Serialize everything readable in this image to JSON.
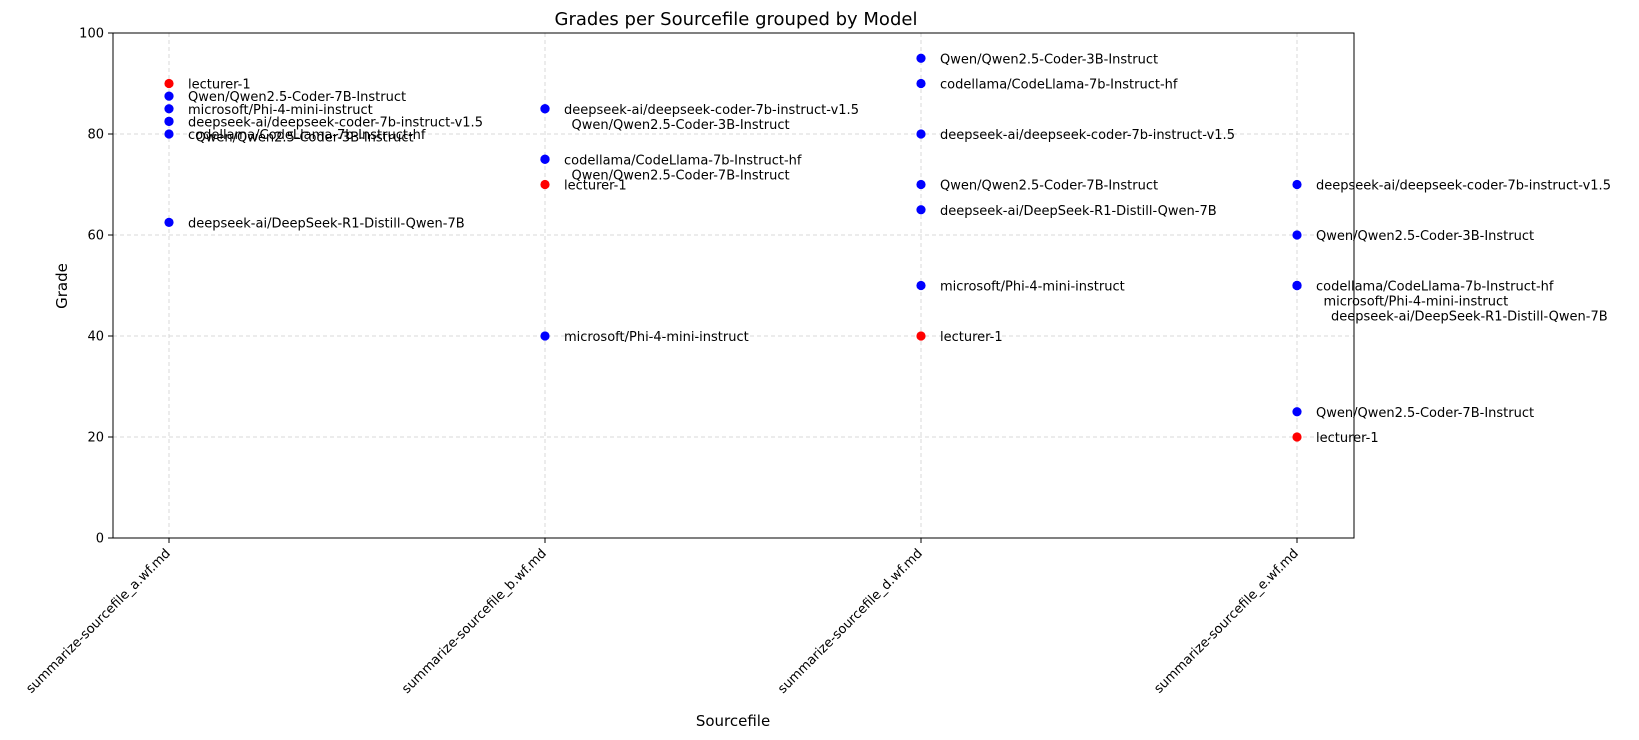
{
  "chart_data": {
    "type": "scatter",
    "title": "Grades per Sourcefile grouped by Model",
    "xlabel": "Sourcefile",
    "ylabel": "Grade",
    "ylim": [
      0,
      100
    ],
    "yticks": [
      "0",
      "20",
      "40",
      "60",
      "80",
      "100"
    ],
    "categories": [
      "summarize-sourcefile_a.wf.md",
      "summarize-sourcefile_b.wf.md",
      "summarize-sourcefile_d.wf.md",
      "summarize-sourcefile_e.wf.md"
    ],
    "grid": true,
    "colors": {
      "lecturer": "#ff0000",
      "model": "#0000ff"
    },
    "points": [
      {
        "category": "summarize-sourcefile_a.wf.md",
        "y": 90,
        "label": "lecturer-1",
        "kind": "lecturer"
      },
      {
        "category": "summarize-sourcefile_a.wf.md",
        "y": 87.5,
        "label": "Qwen/Qwen2.5-Coder-7B-Instruct",
        "kind": "model"
      },
      {
        "category": "summarize-sourcefile_a.wf.md",
        "y": 85,
        "label": "microsoft/Phi-4-mini-instruct",
        "kind": "model"
      },
      {
        "category": "summarize-sourcefile_a.wf.md",
        "y": 82.5,
        "label": "deepseek-ai/deepseek-coder-7b-instruct-v1.5",
        "kind": "model"
      },
      {
        "category": "summarize-sourcefile_a.wf.md",
        "y": 82.5,
        "label": "Qwen/Qwen2.5-Coder-3B-Instruct",
        "kind": "model"
      },
      {
        "category": "summarize-sourcefile_a.wf.md",
        "y": 80,
        "label": "codellama/CodeLlama-7b-Instruct-hf",
        "kind": "model"
      },
      {
        "category": "summarize-sourcefile_a.wf.md",
        "y": 62.5,
        "label": "deepseek-ai/DeepSeek-R1-Distill-Qwen-7B",
        "kind": "model"
      },
      {
        "category": "summarize-sourcefile_b.wf.md",
        "y": 85,
        "label": "deepseek-ai/deepseek-coder-7b-instruct-v1.5",
        "kind": "model"
      },
      {
        "category": "summarize-sourcefile_b.wf.md",
        "y": 85,
        "label": "Qwen/Qwen2.5-Coder-3B-Instruct",
        "kind": "model"
      },
      {
        "category": "summarize-sourcefile_b.wf.md",
        "y": 75,
        "label": "codellama/CodeLlama-7b-Instruct-hf",
        "kind": "model"
      },
      {
        "category": "summarize-sourcefile_b.wf.md",
        "y": 75,
        "label": "Qwen/Qwen2.5-Coder-7B-Instruct",
        "kind": "model"
      },
      {
        "category": "summarize-sourcefile_b.wf.md",
        "y": 70,
        "label": "lecturer-1",
        "kind": "lecturer"
      },
      {
        "category": "summarize-sourcefile_b.wf.md",
        "y": 40,
        "label": "microsoft/Phi-4-mini-instruct",
        "kind": "model"
      },
      {
        "category": "summarize-sourcefile_d.wf.md",
        "y": 95,
        "label": "Qwen/Qwen2.5-Coder-3B-Instruct",
        "kind": "model"
      },
      {
        "category": "summarize-sourcefile_d.wf.md",
        "y": 90,
        "label": "codellama/CodeLlama-7b-Instruct-hf",
        "kind": "model"
      },
      {
        "category": "summarize-sourcefile_d.wf.md",
        "y": 80,
        "label": "deepseek-ai/deepseek-coder-7b-instruct-v1.5",
        "kind": "model"
      },
      {
        "category": "summarize-sourcefile_d.wf.md",
        "y": 70,
        "label": "Qwen/Qwen2.5-Coder-7B-Instruct",
        "kind": "model"
      },
      {
        "category": "summarize-sourcefile_d.wf.md",
        "y": 65,
        "label": "deepseek-ai/DeepSeek-R1-Distill-Qwen-7B",
        "kind": "model"
      },
      {
        "category": "summarize-sourcefile_d.wf.md",
        "y": 50,
        "label": "microsoft/Phi-4-mini-instruct",
        "kind": "model"
      },
      {
        "category": "summarize-sourcefile_d.wf.md",
        "y": 40,
        "label": "lecturer-1",
        "kind": "lecturer"
      },
      {
        "category": "summarize-sourcefile_e.wf.md",
        "y": 70,
        "label": "deepseek-ai/deepseek-coder-7b-instruct-v1.5",
        "kind": "model"
      },
      {
        "category": "summarize-sourcefile_e.wf.md",
        "y": 60,
        "label": "Qwen/Qwen2.5-Coder-3B-Instruct",
        "kind": "model"
      },
      {
        "category": "summarize-sourcefile_e.wf.md",
        "y": 50,
        "label": "codellama/CodeLlama-7b-Instruct-hf",
        "kind": "model"
      },
      {
        "category": "summarize-sourcefile_e.wf.md",
        "y": 50,
        "label": "microsoft/Phi-4-mini-instruct",
        "kind": "model"
      },
      {
        "category": "summarize-sourcefile_e.wf.md",
        "y": 50,
        "label": "deepseek-ai/DeepSeek-R1-Distill-Qwen-7B",
        "kind": "model"
      },
      {
        "category": "summarize-sourcefile_e.wf.md",
        "y": 25,
        "label": "Qwen/Qwen2.5-Coder-7B-Instruct",
        "kind": "model"
      },
      {
        "category": "summarize-sourcefile_e.wf.md",
        "y": 20,
        "label": "lecturer-1",
        "kind": "lecturer"
      }
    ]
  }
}
